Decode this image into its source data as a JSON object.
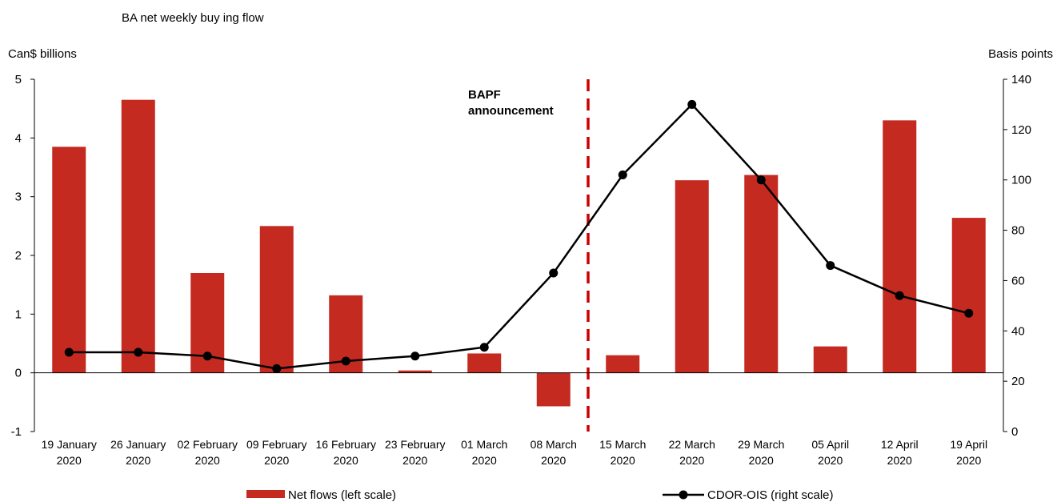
{
  "chart_data": {
    "type": "bar",
    "title": "BA net weekly buy ing flow",
    "left_axis_label": "Can$ billions",
    "right_axis_label": "Basis points",
    "left_ylim": [
      -1,
      5
    ],
    "right_ylim": [
      0,
      140
    ],
    "left_ticks": [
      "5",
      "4",
      "3",
      "2",
      "1",
      "0",
      "-1"
    ],
    "right_ticks": [
      "140",
      "120",
      "100",
      "80",
      "60",
      "40",
      "20",
      "0"
    ],
    "categories": [
      [
        "19 January",
        "2020"
      ],
      [
        "26 January",
        "2020"
      ],
      [
        "02 February",
        "2020"
      ],
      [
        "09 February",
        "2020"
      ],
      [
        "16 February",
        "2020"
      ],
      [
        "23 February",
        "2020"
      ],
      [
        "01 March",
        "2020"
      ],
      [
        "08 March",
        "2020"
      ],
      [
        "15 March",
        "2020"
      ],
      [
        "22 March",
        "2020"
      ],
      [
        "29 March",
        "2020"
      ],
      [
        "05 April",
        "2020"
      ],
      [
        "12 April",
        "2020"
      ],
      [
        "19 April",
        "2020"
      ]
    ],
    "series": [
      {
        "name": "Net flows (left scale)",
        "type": "bar",
        "axis": "left",
        "color": "#c42a20",
        "values": [
          3.85,
          4.65,
          1.7,
          2.5,
          1.32,
          0.04,
          0.33,
          -0.57,
          0.3,
          3.28,
          3.37,
          0.45,
          4.3,
          2.64
        ]
      },
      {
        "name": "CDOR-OIS (right scale)",
        "type": "line",
        "axis": "right",
        "color": "#000000",
        "values": [
          31.5,
          31.5,
          30,
          25,
          28,
          30,
          33.5,
          63,
          102,
          130,
          100,
          66,
          54,
          47
        ]
      }
    ],
    "annotation": {
      "lines": [
        "BAPF",
        "announcement"
      ],
      "between": [
        "08 March",
        "15 March"
      ],
      "color": "#cc0000"
    },
    "grid": false,
    "legend": "bottom"
  }
}
